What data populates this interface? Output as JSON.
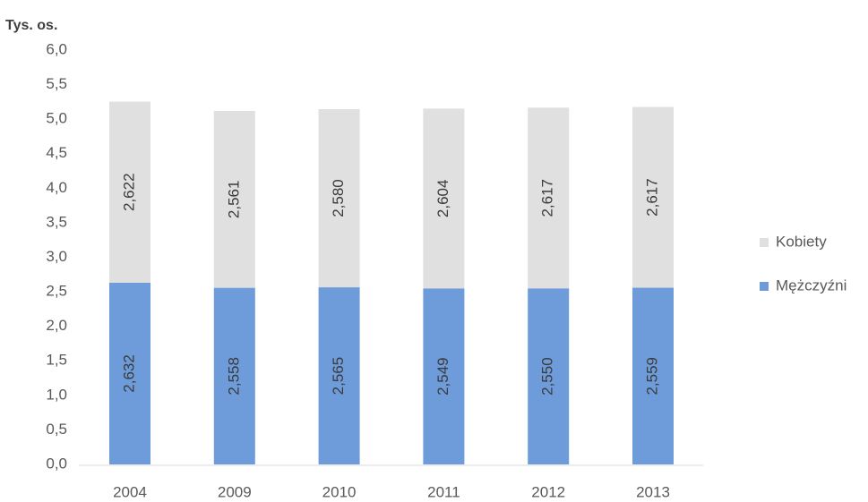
{
  "chart_data": {
    "type": "bar",
    "stacked": true,
    "ylabel": "Tys. os.",
    "ylim": [
      0,
      6
    ],
    "yticks": [
      0,
      0.5,
      1,
      1.5,
      2,
      2.5,
      3,
      3.5,
      4,
      4.5,
      5,
      5.5,
      6
    ],
    "ytick_labels": [
      "0,0",
      "0,5",
      "1,0",
      "1,5",
      "2,0",
      "2,5",
      "3,0",
      "3,5",
      "4,0",
      "4,5",
      "5,0",
      "5,5",
      "6,0"
    ],
    "categories": [
      "2004",
      "2009",
      "2010",
      "2011",
      "2012",
      "2013"
    ],
    "series": [
      {
        "name": "Mężczyźni",
        "color": "#6e9cdb",
        "values": [
          2.632,
          2.558,
          2.565,
          2.549,
          2.55,
          2.559
        ],
        "data_labels": [
          "2,632",
          "2,558",
          "2,565",
          "2,549",
          "2,550",
          "2,559"
        ]
      },
      {
        "name": "Kobiety",
        "color": "#e0e0e0",
        "values": [
          2.622,
          2.561,
          2.58,
          2.604,
          2.617,
          2.617
        ],
        "data_labels": [
          "2,622",
          "2,561",
          "2,580",
          "2,604",
          "2,617",
          "2,617"
        ]
      }
    ],
    "grid": false,
    "legend_position": "right"
  }
}
